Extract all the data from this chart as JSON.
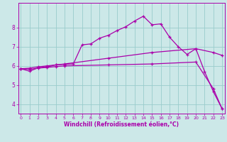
{
  "xlabel": "Windchill (Refroidissement éolien,°C)",
  "bg_color": "#cce8e8",
  "line_color": "#aa00aa",
  "grid_color": "#99cccc",
  "x_min": 0,
  "x_max": 23,
  "y_min": 3.5,
  "y_max": 9.3,
  "curve1_x": [
    0,
    1,
    2,
    3,
    4,
    5,
    6,
    7,
    8,
    9,
    10,
    11,
    12,
    13,
    14,
    15,
    16,
    17,
    18,
    19,
    20,
    21,
    22,
    23
  ],
  "curve1_y": [
    5.85,
    5.72,
    5.9,
    5.95,
    6.05,
    6.08,
    6.1,
    7.1,
    7.15,
    7.45,
    7.6,
    7.85,
    8.05,
    8.35,
    8.6,
    8.15,
    8.2,
    7.5,
    7.0,
    6.6,
    6.9,
    5.7,
    4.65,
    3.75
  ],
  "curve2_x": [
    0,
    1,
    2,
    3,
    4,
    5,
    10,
    15,
    20,
    22,
    23
  ],
  "curve2_y": [
    5.85,
    5.88,
    5.95,
    6.0,
    6.05,
    6.1,
    6.4,
    6.7,
    6.9,
    6.7,
    6.55
  ],
  "curve3_x": [
    0,
    1,
    2,
    3,
    4,
    5,
    10,
    15,
    20,
    22,
    23
  ],
  "curve3_y": [
    5.85,
    5.82,
    5.88,
    5.92,
    5.96,
    6.0,
    6.05,
    6.1,
    6.2,
    4.8,
    3.75
  ],
  "yticks": [
    4,
    5,
    6,
    7,
    8
  ],
  "xticks": [
    0,
    1,
    2,
    3,
    4,
    5,
    6,
    7,
    8,
    9,
    10,
    11,
    12,
    13,
    14,
    15,
    16,
    17,
    18,
    19,
    20,
    21,
    22,
    23
  ]
}
